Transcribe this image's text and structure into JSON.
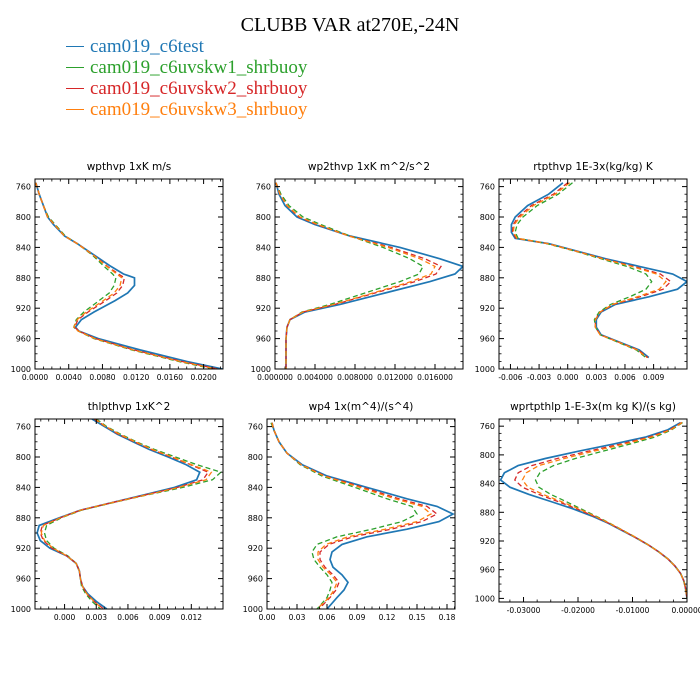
{
  "figure_title": "CLUBB VAR at270E,-24N",
  "colors": {
    "c6test": "#1f77b4",
    "uvskw1": "#2ca02c",
    "uvskw2": "#d62728",
    "uvskw3": "#ff7f0e"
  },
  "legend": [
    {
      "name": "cam019_c6test",
      "color": "#1f77b4"
    },
    {
      "name": "cam019_c6uvskw1_shrbuoy",
      "color": "#2ca02c"
    },
    {
      "name": "cam019_c6uvskw2_shrbuoy",
      "color": "#d62728"
    },
    {
      "name": "cam019_c6uvskw3_shrbuoy",
      "color": "#ff7f0e"
    }
  ],
  "chart_data": [
    {
      "type": "line",
      "title": "wpthvp   1xK m/s",
      "y_axis_reversed": true,
      "xlim": [
        0,
        0.0223
      ],
      "ylim": [
        750,
        1000
      ],
      "xticks": [
        0,
        0.004,
        0.008,
        0.012,
        0.016,
        0.02
      ],
      "xtick_labels": [
        "0.0000",
        "0.0040",
        "0.0080",
        "0.0120",
        "0.0160",
        "0.0200"
      ],
      "yticks": [
        760,
        800,
        840,
        880,
        920,
        960,
        1000
      ],
      "levels": [
        755,
        770,
        785,
        800,
        810,
        825,
        835,
        850,
        865,
        875,
        880,
        890,
        900,
        910,
        925,
        935,
        945,
        950,
        960,
        975,
        990,
        1000
      ],
      "series": [
        {
          "name": "cam019_c6test",
          "style": "solid",
          "x": [
            0.0001,
            0.0005,
            0.001,
            0.0015,
            0.0022,
            0.0035,
            0.005,
            0.007,
            0.009,
            0.0105,
            0.0118,
            0.0118,
            0.011,
            0.0095,
            0.007,
            0.0055,
            0.0048,
            0.0052,
            0.0075,
            0.0125,
            0.018,
            0.0222
          ]
        },
        {
          "name": "cam019_c6uvskw1_shrbuoy",
          "style": "dashed",
          "x": [
            0.0001,
            0.0005,
            0.001,
            0.0016,
            0.0024,
            0.0036,
            0.005,
            0.0068,
            0.0082,
            0.0092,
            0.0096,
            0.0094,
            0.0088,
            0.0076,
            0.0058,
            0.0049,
            0.0046,
            0.0051,
            0.007,
            0.0115,
            0.017,
            0.0212
          ]
        },
        {
          "name": "cam019_c6uvskw2_shrbuoy",
          "style": "dashed",
          "x": [
            0.0001,
            0.0005,
            0.001,
            0.0015,
            0.0023,
            0.0035,
            0.005,
            0.0069,
            0.0086,
            0.0099,
            0.0106,
            0.0104,
            0.0097,
            0.0084,
            0.0063,
            0.0051,
            0.0047,
            0.0052,
            0.0072,
            0.0118,
            0.0174,
            0.0217
          ]
        },
        {
          "name": "cam019_c6uvskw3_shrbuoy",
          "style": "dashed",
          "x": [
            0.0001,
            0.0005,
            0.001,
            0.0015,
            0.0023,
            0.0035,
            0.005,
            0.0069,
            0.0085,
            0.0097,
            0.0103,
            0.0101,
            0.0094,
            0.0081,
            0.0061,
            0.005,
            0.0046,
            0.0051,
            0.0071,
            0.0117,
            0.0172,
            0.0215
          ]
        }
      ]
    },
    {
      "type": "line",
      "title": "wp2thvp   1xK m^2/s^2",
      "y_axis_reversed": true,
      "xlim": [
        0,
        0.0188
      ],
      "ylim": [
        750,
        1000
      ],
      "xticks": [
        0,
        0.004,
        0.008,
        0.012,
        0.016
      ],
      "xtick_labels": [
        "0.000000",
        "0.004000",
        "0.008000",
        "0.012000",
        "0.016000"
      ],
      "yticks": [
        760,
        800,
        840,
        880,
        920,
        960,
        1000
      ],
      "levels": [
        755,
        770,
        785,
        800,
        810,
        825,
        840,
        855,
        865,
        875,
        885,
        900,
        915,
        925,
        935,
        945,
        960,
        975,
        990,
        1000
      ],
      "series": [
        {
          "name": "cam019_c6test",
          "style": "solid",
          "x": [
            0.0001,
            0.0004,
            0.001,
            0.0022,
            0.004,
            0.0075,
            0.0125,
            0.0165,
            0.0188,
            0.018,
            0.0155,
            0.011,
            0.0065,
            0.003,
            0.0015,
            0.0012,
            0.0011,
            0.0011,
            0.0011,
            0.0011
          ]
        },
        {
          "name": "cam019_c6uvskw1_shrbuoy",
          "style": "dashed",
          "x": [
            0.0001,
            0.0006,
            0.0014,
            0.0028,
            0.0046,
            0.0075,
            0.0108,
            0.0135,
            0.0148,
            0.0144,
            0.0125,
            0.009,
            0.0055,
            0.0027,
            0.0015,
            0.0012,
            0.0011,
            0.0011,
            0.0011,
            0.0011
          ]
        },
        {
          "name": "cam019_c6uvskw2_shrbuoy",
          "style": "dashed",
          "x": [
            0.0001,
            0.0005,
            0.0012,
            0.0024,
            0.0042,
            0.0074,
            0.0116,
            0.015,
            0.0166,
            0.0161,
            0.014,
            0.01,
            0.006,
            0.0028,
            0.0015,
            0.0012,
            0.0011,
            0.0011,
            0.0011,
            0.0011
          ]
        },
        {
          "name": "cam019_c6uvskw3_shrbuoy",
          "style": "dashed",
          "x": [
            0.0001,
            0.0005,
            0.0012,
            0.0025,
            0.0043,
            0.0074,
            0.0113,
            0.0145,
            0.016,
            0.0156,
            0.0136,
            0.0098,
            0.0059,
            0.0028,
            0.0015,
            0.0012,
            0.0011,
            0.0011,
            0.0011,
            0.0011
          ]
        }
      ]
    },
    {
      "type": "line",
      "title": "rtpthvp   1E-3x(kg/kg) K",
      "y_axis_reversed": true,
      "xlim": [
        -0.0072,
        0.0125
      ],
      "ylim": [
        750,
        1000
      ],
      "xticks": [
        -0.006,
        -0.003,
        0,
        0.003,
        0.006,
        0.009
      ],
      "xtick_labels": [
        "-0.006",
        "-0.003",
        "0.000",
        "0.003",
        "0.006",
        "0.009"
      ],
      "yticks": [
        760,
        800,
        840,
        880,
        920,
        960,
        1000
      ],
      "levels": [
        755,
        770,
        785,
        800,
        810,
        820,
        828,
        835,
        845,
        855,
        865,
        875,
        885,
        895,
        905,
        915,
        925,
        935,
        945,
        955,
        965,
        975,
        985
      ],
      "series": [
        {
          "name": "cam019_c6test",
          "style": "solid",
          "x": [
            -0.0005,
            -0.002,
            -0.0042,
            -0.0055,
            -0.0059,
            -0.0059,
            -0.0055,
            -0.002,
            0.001,
            0.004,
            0.0075,
            0.011,
            0.0125,
            0.0115,
            0.0085,
            0.005,
            0.0035,
            0.003,
            0.003,
            0.0035,
            0.0055,
            0.0075,
            0.0085
          ]
        },
        {
          "name": "cam019_c6uvskw1_shrbuoy",
          "style": "dashed",
          "x": [
            0.0005,
            -0.001,
            -0.0032,
            -0.0047,
            -0.0053,
            -0.0055,
            -0.0052,
            -0.0022,
            0.0008,
            0.0035,
            0.0062,
            0.0082,
            0.0088,
            0.0082,
            0.0065,
            0.0045,
            0.0033,
            0.0028,
            0.0029,
            0.0034,
            0.0053,
            0.0072,
            0.0082
          ]
        },
        {
          "name": "cam019_c6uvskw2_shrbuoy",
          "style": "dashed",
          "x": [
            0,
            -0.0015,
            -0.0038,
            -0.0052,
            -0.0057,
            -0.0058,
            -0.0054,
            -0.0021,
            0.0009,
            0.0038,
            0.0069,
            0.0097,
            0.0108,
            0.01,
            0.0076,
            0.0048,
            0.0034,
            0.0029,
            0.0029,
            0.0034,
            0.0054,
            0.0074,
            0.0084
          ]
        },
        {
          "name": "cam019_c6uvskw3_shrbuoy",
          "style": "dashed",
          "x": [
            0.0002,
            -0.0013,
            -0.0036,
            -0.005,
            -0.0056,
            -0.0057,
            -0.0053,
            -0.0021,
            0.0009,
            0.0037,
            0.0067,
            0.0093,
            0.0103,
            0.0096,
            0.0073,
            0.0047,
            0.0034,
            0.0029,
            0.0029,
            0.0034,
            0.0054,
            0.0073,
            0.0083
          ]
        }
      ]
    },
    {
      "type": "line",
      "title": "thlpthvp   1xK^2",
      "y_axis_reversed": true,
      "xlim": [
        -0.0028,
        0.015
      ],
      "ylim": [
        750,
        1000
      ],
      "xticks": [
        0,
        0.003,
        0.006,
        0.009,
        0.012
      ],
      "xtick_labels": [
        "0.000",
        "0.003",
        "0.006",
        "0.009",
        "0.012"
      ],
      "yticks": [
        760,
        800,
        840,
        880,
        920,
        960,
        1000
      ],
      "levels": [
        750,
        760,
        770,
        780,
        790,
        800,
        810,
        820,
        830,
        840,
        850,
        860,
        870,
        880,
        890,
        900,
        910,
        920,
        930,
        940,
        950,
        960,
        970,
        980,
        990,
        1000
      ],
      "series": [
        {
          "name": "cam019_c6test",
          "style": "solid",
          "x": [
            0.0026,
            0.0038,
            0.005,
            0.0065,
            0.008,
            0.0098,
            0.0115,
            0.0128,
            0.0125,
            0.0104,
            0.0075,
            0.0045,
            0.0015,
            -0.0005,
            -0.0024,
            -0.0026,
            -0.0023,
            -0.0014,
            0.0002,
            0.0011,
            0.0014,
            0.0015,
            0.0017,
            0.0022,
            0.003,
            0.004
          ]
        },
        {
          "name": "cam019_c6uvskw1_shrbuoy",
          "style": "dashed",
          "x": [
            0.003,
            0.004,
            0.0053,
            0.0068,
            0.0085,
            0.0105,
            0.0125,
            0.0148,
            0.014,
            0.0112,
            0.0078,
            0.0046,
            0.0016,
            -0.0003,
            -0.0017,
            -0.0019,
            -0.0017,
            -0.001,
            0.0003,
            0.0011,
            0.0014,
            0.0015,
            0.0016,
            0.002,
            0.0026,
            0.0034
          ]
        },
        {
          "name": "cam019_c6uvskw2_shrbuoy",
          "style": "dashed",
          "x": [
            0.0028,
            0.0039,
            0.0051,
            0.0066,
            0.0082,
            0.0101,
            0.0119,
            0.0136,
            0.0131,
            0.0107,
            0.0076,
            0.0045,
            0.0015,
            -0.0004,
            -0.0021,
            -0.0023,
            -0.002,
            -0.0012,
            0.0002,
            0.0011,
            0.0014,
            0.0015,
            0.0017,
            0.0021,
            0.0028,
            0.0037
          ]
        },
        {
          "name": "cam019_c6uvskw3_shrbuoy",
          "style": "dashed",
          "x": [
            0.0029,
            0.0039,
            0.0052,
            0.0067,
            0.0083,
            0.0102,
            0.012,
            0.0139,
            0.0134,
            0.0108,
            0.0077,
            0.0045,
            0.0015,
            -0.0004,
            -0.002,
            -0.0022,
            -0.0019,
            -0.0011,
            0.0002,
            0.0011,
            0.0014,
            0.0015,
            0.0017,
            0.0021,
            0.0028,
            0.0036
          ]
        }
      ]
    },
    {
      "type": "line",
      "title": "wp4   1x(m^4)/(s^4)",
      "y_axis_reversed": true,
      "xlim": [
        0,
        0.188
      ],
      "ylim": [
        750,
        1000
      ],
      "xticks": [
        0,
        0.03,
        0.06,
        0.09,
        0.12,
        0.15,
        0.18
      ],
      "xtick_labels": [
        "0.00",
        "0.03",
        "0.06",
        "0.09",
        "0.12",
        "0.15",
        "0.18"
      ],
      "yticks": [
        760,
        800,
        840,
        880,
        920,
        960,
        1000
      ],
      "levels": [
        755,
        765,
        780,
        795,
        810,
        825,
        840,
        855,
        865,
        875,
        885,
        895,
        905,
        915,
        925,
        935,
        945,
        955,
        965,
        975,
        985,
        1000
      ],
      "series": [
        {
          "name": "cam019_c6test",
          "style": "solid",
          "x": [
            0.005,
            0.007,
            0.012,
            0.02,
            0.035,
            0.06,
            0.1,
            0.14,
            0.17,
            0.186,
            0.172,
            0.14,
            0.1,
            0.075,
            0.065,
            0.063,
            0.066,
            0.075,
            0.081,
            0.077,
            0.07,
            0.06
          ]
        },
        {
          "name": "cam019_c6uvskw1_shrbuoy",
          "style": "dashed",
          "x": [
            0.004,
            0.007,
            0.012,
            0.02,
            0.033,
            0.055,
            0.088,
            0.12,
            0.145,
            0.15,
            0.135,
            0.105,
            0.07,
            0.05,
            0.045,
            0.047,
            0.053,
            0.06,
            0.065,
            0.063,
            0.06,
            0.05
          ]
        },
        {
          "name": "cam019_c6uvskw2_shrbuoy",
          "style": "dashed",
          "x": [
            0.005,
            0.007,
            0.012,
            0.02,
            0.034,
            0.058,
            0.096,
            0.132,
            0.16,
            0.17,
            0.155,
            0.124,
            0.086,
            0.062,
            0.053,
            0.053,
            0.058,
            0.066,
            0.072,
            0.069,
            0.063,
            0.052
          ]
        },
        {
          "name": "cam019_c6uvskw3_shrbuoy",
          "style": "dashed",
          "x": [
            0.005,
            0.007,
            0.012,
            0.02,
            0.034,
            0.057,
            0.093,
            0.128,
            0.155,
            0.164,
            0.15,
            0.118,
            0.081,
            0.059,
            0.051,
            0.051,
            0.056,
            0.064,
            0.07,
            0.067,
            0.062,
            0.05
          ]
        }
      ]
    },
    {
      "type": "line",
      "title": "wprtpthlp   1-E-3x(m kg K)/(s kg)",
      "y_axis_reversed": true,
      "xlim": [
        -0.0345,
        0
      ],
      "ylim": [
        750,
        1005
      ],
      "xticks": [
        -0.03,
        -0.02,
        -0.01,
        0
      ],
      "xtick_labels": [
        "-0.03000",
        "-0.02000",
        "-0.01000",
        "0.00000"
      ],
      "yticks": [
        760,
        800,
        840,
        880,
        920,
        960,
        1000
      ],
      "levels": [
        755,
        765,
        775,
        785,
        795,
        805,
        815,
        825,
        835,
        845,
        855,
        865,
        875,
        885,
        895,
        905,
        915,
        925,
        935,
        945,
        955,
        965,
        975,
        985,
        995,
        1000
      ],
      "series": [
        {
          "name": "cam019_c6test",
          "style": "solid",
          "x": [
            -0.0012,
            -0.0035,
            -0.0075,
            -0.0135,
            -0.02,
            -0.026,
            -0.031,
            -0.0335,
            -0.0342,
            -0.0325,
            -0.029,
            -0.025,
            -0.021,
            -0.0175,
            -0.0145,
            -0.012,
            -0.0095,
            -0.0072,
            -0.0052,
            -0.0035,
            -0.0022,
            -0.0012,
            -0.0006,
            -0.0003,
            -0.0001,
            0
          ]
        },
        {
          "name": "cam019_c6uvskw1_shrbuoy",
          "style": "dashed",
          "x": [
            -0.0008,
            -0.0028,
            -0.0058,
            -0.0105,
            -0.0155,
            -0.0205,
            -0.0245,
            -0.027,
            -0.0278,
            -0.0272,
            -0.025,
            -0.0222,
            -0.0195,
            -0.0168,
            -0.0142,
            -0.0118,
            -0.0094,
            -0.0072,
            -0.0052,
            -0.0035,
            -0.0022,
            -0.0012,
            -0.0006,
            -0.0003,
            -0.0001,
            0
          ]
        },
        {
          "name": "cam019_c6uvskw2_shrbuoy",
          "style": "dashed",
          "x": [
            -0.001,
            -0.0032,
            -0.0068,
            -0.0122,
            -0.0182,
            -0.0238,
            -0.0285,
            -0.031,
            -0.0316,
            -0.0302,
            -0.0272,
            -0.0237,
            -0.0203,
            -0.0172,
            -0.0144,
            -0.0119,
            -0.0095,
            -0.0072,
            -0.0052,
            -0.0035,
            -0.0022,
            -0.0012,
            -0.0006,
            -0.0003,
            -0.0001,
            0
          ]
        },
        {
          "name": "cam019_c6uvskw3_shrbuoy",
          "style": "dashed",
          "x": [
            -0.0009,
            -0.003,
            -0.0064,
            -0.0115,
            -0.0172,
            -0.0225,
            -0.0272,
            -0.0295,
            -0.0302,
            -0.0292,
            -0.0264,
            -0.0231,
            -0.0199,
            -0.017,
            -0.0143,
            -0.0119,
            -0.0094,
            -0.0072,
            -0.0052,
            -0.0035,
            -0.0022,
            -0.0012,
            -0.0006,
            -0.0003,
            -0.0001,
            0
          ]
        }
      ]
    }
  ]
}
